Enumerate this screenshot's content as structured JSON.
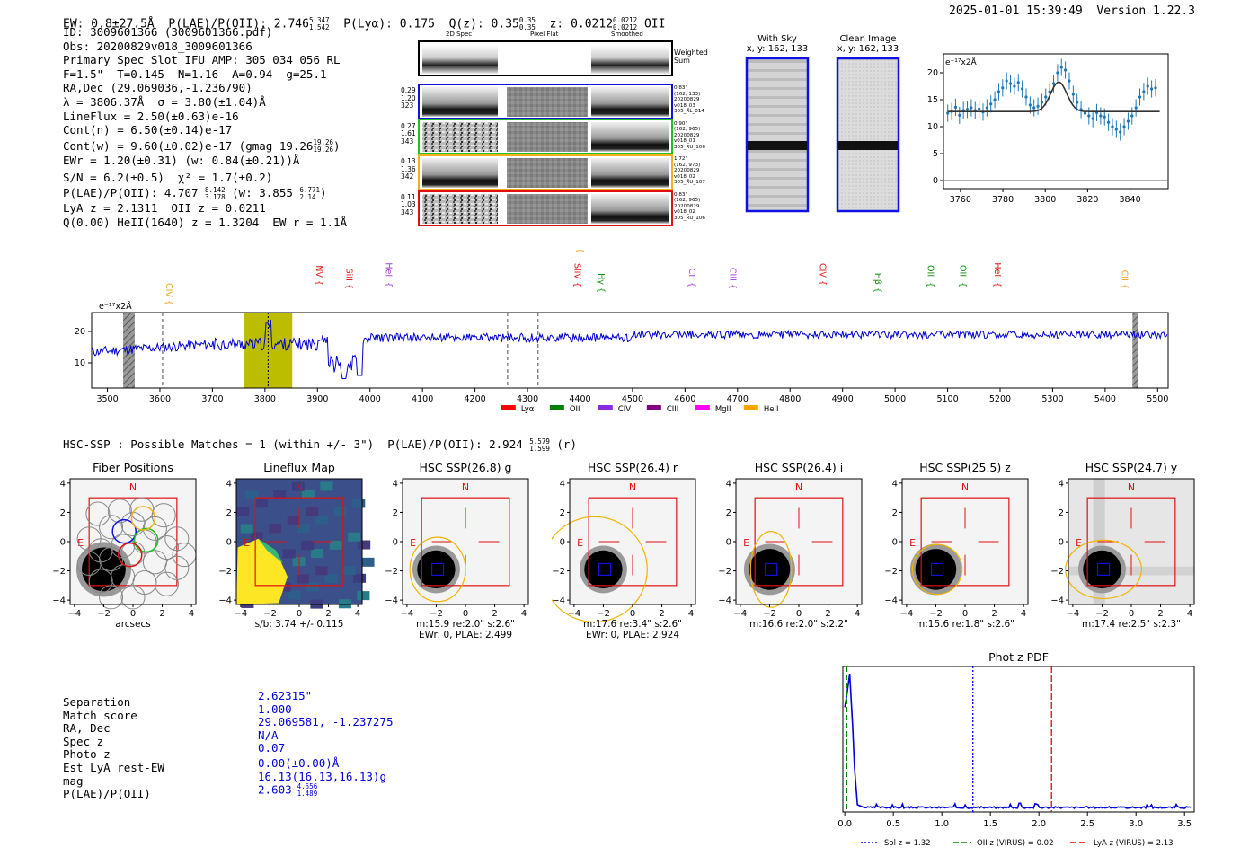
{
  "header": {
    "ew": "EW: 0.8±27.5Å",
    "plae_label": "P(LAE)/P(OII): 2.746",
    "plae_hi": "5.347",
    "plae_lo": "1.542",
    "plya": "P(Lyα): 0.175",
    "qz_label": "Q(z): 0.35",
    "qz_hi": "0.35",
    "qz_lo": "0.35",
    "z_label": "z: 0.0212",
    "z_hi": "0.0212",
    "z_lo": "0.0212",
    "z_line": "OII",
    "datetime": "2025-01-01 15:39:49",
    "version": "Version 1.22.3"
  },
  "info": {
    "l1": "ID: 3009601366 (3009601366.pdf)",
    "l2": "Obs: 20200829v018_3009601366",
    "l3": "Primary Spec_Slot_IFU_AMP: 305_034_056_RL",
    "l4": "F=1.5\"  T=0.145  N=1.16  A=0.94  g=25.1",
    "l5": "RA,Dec (29.069036,-1.236790)",
    "l6": "λ = 3806.37Å  σ = 3.80(±1.04)Å",
    "l7": "LineFlux = 2.50(±0.63)e-16",
    "l8": "Cont(n) = 6.50(±0.14)e-17",
    "l9": "Cont(w) = 9.60(±0.02)e-17 (gmag 19.26",
    "l9_hi": "19.26",
    "l9_lo": "19.26",
    "l9_end": ")",
    "l10": "EWr = 1.20(±0.31) (w: 0.84(±0.21))Å",
    "l11": "S/N = 6.2(±0.5)  χ² = 1.7(±0.2)",
    "l12a": "P(LAE)/P(OII): 4.707",
    "l12_hi": "8.142",
    "l12_lo": "3.178",
    "l12b": "(w: 3.855",
    "l12b_hi": "6.771",
    "l12b_lo": "2.14",
    "l12c": ")",
    "l13": "LyA z = 2.1311  OII z = 0.0211",
    "l14": "Q(0.00) HeII(1640) z = 1.3204  EW r = 1.1Å"
  },
  "cutouts": {
    "col1": "2D Spec",
    "col2": "Pixel Flat",
    "col3": "Smoothed",
    "weighted": "Weighted",
    "sum": "Sum",
    "rows": [
      {
        "a": "0.29",
        "b": "1.20",
        "c": "323",
        "r1": "0.83\"",
        "r2": "(162, 133)",
        "r3": "20200829",
        "r4": "v018_03",
        "r5": "305_RL_014",
        "color": "#1010e0"
      },
      {
        "a": "0.27",
        "b": "1.61",
        "c": "343",
        "r1": "0.90\"",
        "r2": "(162, 965)",
        "r3": "20200829",
        "r4": "v018_01",
        "r5": "305_RU_106",
        "color": "#22c022"
      },
      {
        "a": "0.13",
        "b": "1.36",
        "c": "342",
        "r1": "1.72\"",
        "r2": "(162, 973)",
        "r3": "20200829",
        "r4": "v018_02",
        "r5": "305_RU_107",
        "color": "#f0b020"
      },
      {
        "a": "0.11",
        "b": "1.03",
        "c": "343",
        "r1": "0.83\"",
        "r2": "(162, 965)",
        "r3": "20200829",
        "r4": "v018_02",
        "r5": "305_RU_106",
        "color": "#e01010"
      }
    ]
  },
  "withsky": {
    "title": "With Sky",
    "coords": "x, y: 162, 133"
  },
  "clean": {
    "title": "Clean Image",
    "coords": "x, y: 162, 133"
  },
  "zoom_chart": {
    "unit": "e⁻¹⁷x2Å",
    "x_ticks": [
      "3760",
      "3780",
      "3800",
      "3820",
      "3840"
    ],
    "y_ticks": [
      "0",
      "5",
      "10",
      "15",
      "20"
    ]
  },
  "spectrum": {
    "unit": "e⁻¹⁷x2Å",
    "x_ticks": [
      "3500",
      "3600",
      "3700",
      "3800",
      "3900",
      "4000",
      "4100",
      "4200",
      "4300",
      "4400",
      "4500",
      "4600",
      "4700",
      "4800",
      "4900",
      "5000",
      "5100",
      "5200",
      "5300",
      "5400",
      "5500"
    ],
    "y_ticks": [
      "10",
      "20"
    ],
    "lines": [
      {
        "label": "CIV",
        "color": "#f0a020"
      },
      {
        "label": "NV",
        "color": "#e01010"
      },
      {
        "label": "SiII",
        "color": "#e01010"
      },
      {
        "label": "HeII",
        "color": "#a040e0"
      },
      {
        "label": "CIII",
        "color": "#f0a020"
      },
      {
        "label": "SiIV",
        "color": "#e01010"
      },
      {
        "label": "Hγ",
        "color": "#109010"
      },
      {
        "label": "CII",
        "color": "#a040e0"
      },
      {
        "label": "CIII",
        "color": "#a040e0"
      },
      {
        "label": "CIV",
        "color": "#e01010"
      },
      {
        "label": "Hβ",
        "color": "#109010"
      },
      {
        "label": "OIII",
        "color": "#109010"
      },
      {
        "label": "OII",
        "color": "#e010e0"
      },
      {
        "label": "OIII",
        "color": "#109010"
      },
      {
        "label": "HeII",
        "color": "#e01010"
      },
      {
        "label": "CII",
        "color": "#f0a020"
      }
    ],
    "legend": [
      {
        "label": "Lyα",
        "color": "#ff0000"
      },
      {
        "label": "OII",
        "color": "#008000"
      },
      {
        "label": "CIV",
        "color": "#8a2be2"
      },
      {
        "label": "CIII",
        "color": "#800080"
      },
      {
        "label": "MgII",
        "color": "#ff00ff"
      },
      {
        "label": "HeII",
        "color": "#ffa500"
      }
    ]
  },
  "hsc": {
    "summary": "HSC-SSP : Possible Matches = 1 (within +/- 3\")  P(LAE)/P(OII): 2.924",
    "summary_hi": "5.579",
    "summary_lo": "1.599",
    "summary_end": "(r)"
  },
  "panels": [
    {
      "title": "Fiber Positions",
      "cap1": "arcsecs",
      "cap2": ""
    },
    {
      "title": "Lineflux Map",
      "cap1": "s/b: 3.74 +/- 0.115",
      "cap2": ""
    },
    {
      "title": "HSC SSP(26.8) g",
      "cap1": "m:15.9  re:2.0\"  s:2.6\"",
      "cap2": "EWr: 0, PLAE: 2.499"
    },
    {
      "title": "HSC SSP(26.4) r",
      "cap1": "m:17.6  re:3.4\"  s:2.6\"",
      "cap2": "EWr: 0, PLAE: 2.924"
    },
    {
      "title": "HSC SSP(26.4) i",
      "cap1": "m:16.6  re:2.0\"  s:2.2\"",
      "cap2": ""
    },
    {
      "title": "HSC SSP(25.5) z",
      "cap1": "m:15.6  re:1.8\"  s:2.6\"",
      "cap2": ""
    },
    {
      "title": "HSC SSP(24.7) y",
      "cap1": "m:17.4  re:2.5\"  s:2.3\"",
      "cap2": ""
    }
  ],
  "panel_ticks": {
    "x": [
      "−4",
      "−2",
      "0",
      "2",
      "4"
    ],
    "y": [
      "4",
      "2",
      "0",
      "−2",
      "−4"
    ],
    "n": "N",
    "e": "E"
  },
  "match": {
    "labels": [
      "Separation",
      "Match score",
      "RA, Dec",
      "Spec z",
      "Photo z",
      "Est LyA rest-EW",
      "mag",
      "P(LAE)/P(OII)"
    ],
    "values": [
      "2.62315\"",
      "1.000",
      "29.069581, -1.237275",
      "N/A",
      "0.07",
      "0.00(±0.00)Å",
      "16.13(16.13,16.13)g",
      "2.603"
    ],
    "plae_hi": "4.556",
    "plae_lo": "1.489"
  },
  "photz": {
    "title": "Phot z PDF",
    "x_ticks": [
      "0.0",
      "0.5",
      "1.0",
      "1.5",
      "2.0",
      "2.5",
      "3.0",
      "3.5"
    ],
    "legend": [
      {
        "label": "Sol z = 1.32",
        "color": "#0000ff"
      },
      {
        "label": "OII z (VIRUS) = 0.02",
        "color": "#008000"
      },
      {
        "label": "LyA z (VIRUS) = 2.13",
        "color": "#ff0000"
      }
    ]
  }
}
